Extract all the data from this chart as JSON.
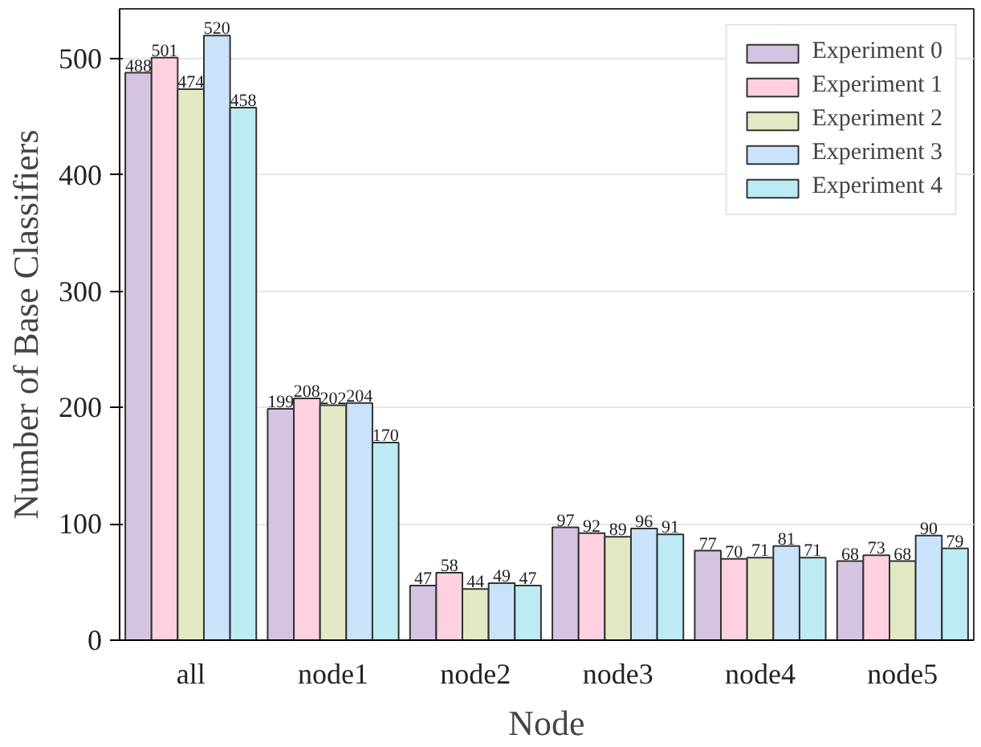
{
  "chart_data": {
    "type": "bar",
    "xlabel": "Node",
    "ylabel": "Number of Base Classifiers",
    "categories": [
      "all",
      "node1",
      "node2",
      "node3",
      "node4",
      "node5"
    ],
    "series": [
      {
        "name": "Experiment 0",
        "color": "#d5c4e1",
        "values": [
          488,
          199,
          47,
          97,
          77,
          68
        ]
      },
      {
        "name": "Experiment 1",
        "color": "#ffd1e0",
        "values": [
          501,
          208,
          58,
          92,
          70,
          73
        ]
      },
      {
        "name": "Experiment 2",
        "color": "#e3e9c4",
        "values": [
          474,
          202,
          44,
          89,
          71,
          68
        ]
      },
      {
        "name": "Experiment 3",
        "color": "#c9e3fa",
        "values": [
          520,
          204,
          49,
          96,
          81,
          90
        ]
      },
      {
        "name": "Experiment 4",
        "color": "#bdebf3",
        "values": [
          458,
          170,
          47,
          91,
          71,
          79
        ]
      }
    ],
    "ylim": [
      0,
      543
    ],
    "yticks": [
      0,
      100,
      200,
      300,
      400,
      500
    ],
    "grid": "y",
    "legend": "top right",
    "data_labels": true
  }
}
